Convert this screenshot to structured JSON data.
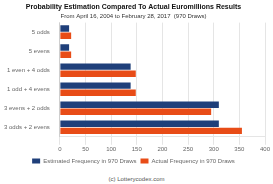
{
  "chart_data": {
    "type": "bar",
    "orientation": "horizontal",
    "title": "Probability Estimation Compared To Actual Euromillions Results",
    "subtitle": "From April 16, 2004 to February 28, 2017  (970 Draws)",
    "annotations": [
      "(c) Lotterycodex.com"
    ],
    "categories": [
      "3 odds + 2 evens",
      "3 evens + 2 odds",
      "1 odd + 4 evens",
      "1 even + 4 odds",
      "5 evens",
      "5 odds"
    ],
    "series": [
      {
        "name": "Estimated Frequency in 970 Draws",
        "color": "#1f3f7a",
        "values": [
          310,
          310,
          138,
          138,
          18,
          18
        ]
      },
      {
        "name": "Actual Frequency in 970 Draws",
        "color": "#e84c17",
        "values": [
          355,
          295,
          148,
          148,
          22,
          22
        ]
      }
    ],
    "xlim": [
      0,
      400
    ],
    "xticks": [
      0,
      50,
      100,
      150,
      200,
      250,
      300,
      350,
      400
    ],
    "grid": true,
    "legend": "bottom"
  }
}
